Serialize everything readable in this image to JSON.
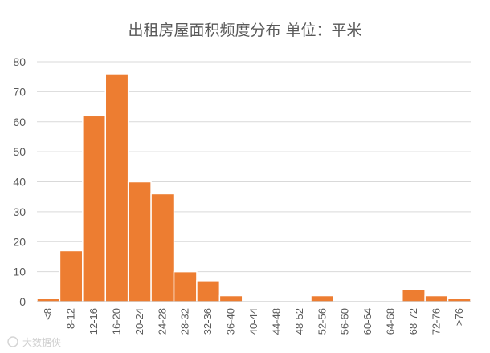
{
  "chart_data": {
    "type": "bar",
    "title": "出租房屋面积频度分布 单位：平米",
    "categories": [
      "<8",
      "8-12",
      "12-16",
      "16-20",
      "20-24",
      "24-28",
      "28-32",
      "32-36",
      "36-40",
      "40-44",
      "44-48",
      "48-52",
      "52-56",
      "56-60",
      "60-64",
      "64-68",
      "68-72",
      "72-76",
      ">76"
    ],
    "values": [
      1,
      17,
      62,
      76,
      40,
      36,
      10,
      7,
      2,
      0,
      0,
      0,
      2,
      0,
      0,
      0,
      4,
      2,
      1
    ],
    "ylim": [
      0,
      80
    ],
    "yticks": [
      0,
      10,
      20,
      30,
      40,
      50,
      60,
      70,
      80
    ],
    "grid": true,
    "legend": "none",
    "bar_color": "#ED7D31"
  },
  "watermark": "大数据侠"
}
